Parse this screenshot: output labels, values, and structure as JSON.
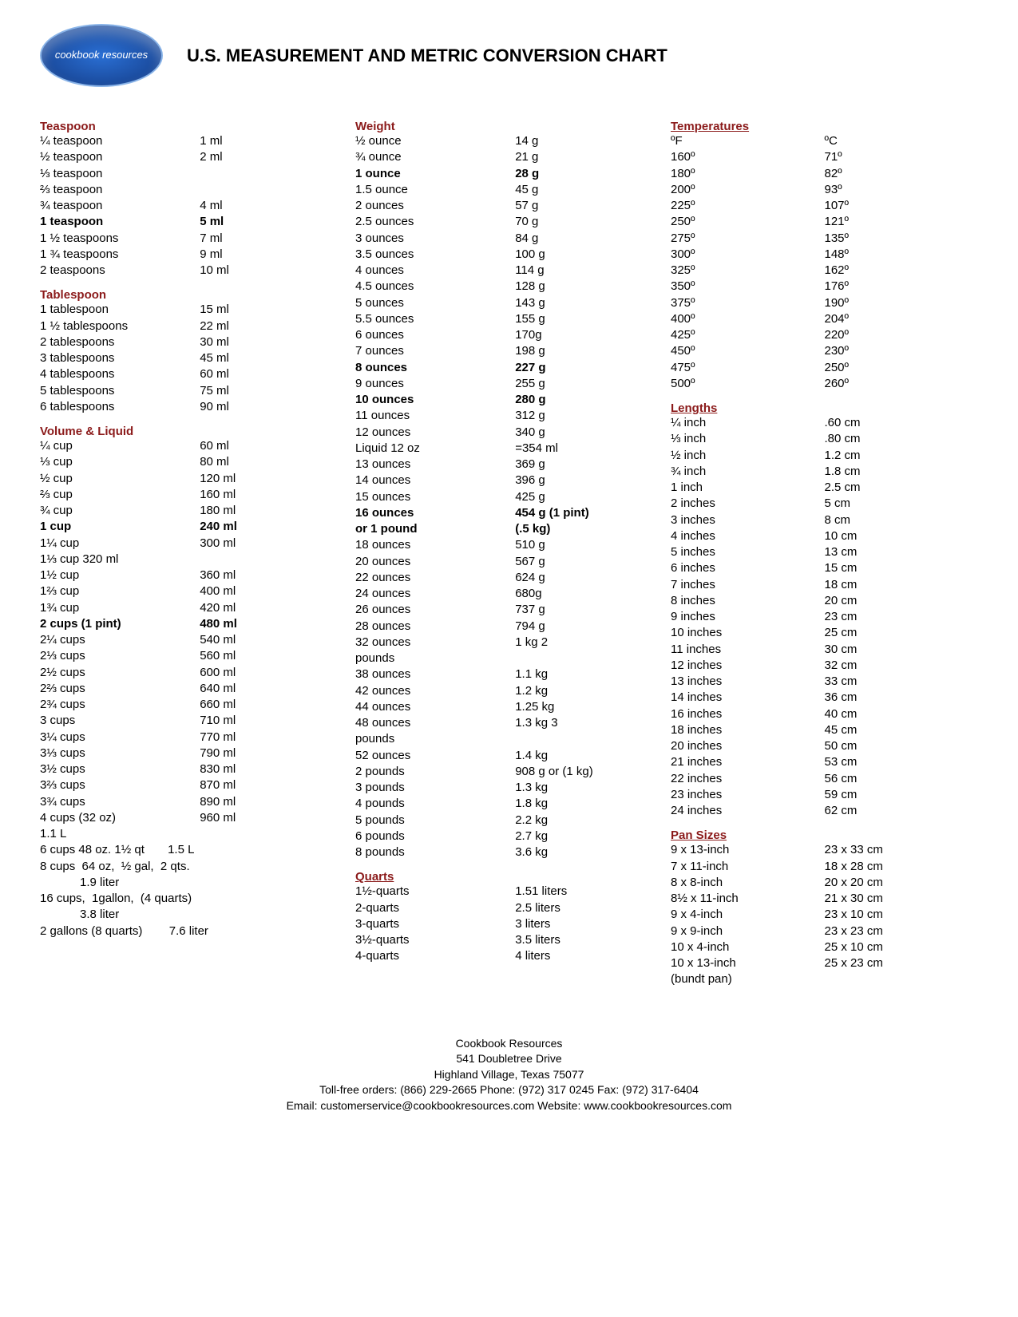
{
  "title": "U.S. MEASUREMENT AND METRIC CONVERSION CHART",
  "logo_text": "cookbook resources",
  "colors": {
    "heading": "#8b1a1a",
    "text": "#000000",
    "bg": "#ffffff"
  },
  "teaspoon": {
    "head": "Teaspoon",
    "rows": [
      {
        "a": "¼ teaspoon",
        "b": "1 ml"
      },
      {
        "a": "½ teaspoon",
        "b": "2 ml"
      },
      {
        "a": "⅓ teaspoon",
        "b": ""
      },
      {
        "a": "⅔ teaspoon",
        "b": ""
      },
      {
        "a": "¾ teaspoon",
        "b": "4 ml"
      },
      {
        "a": "1 teaspoon",
        "b": "5 ml",
        "bold": true
      },
      {
        "a": "1 ½ teaspoons",
        "b": "7 ml"
      },
      {
        "a": "1 ¾ teaspoons",
        "b": "9 ml"
      },
      {
        "a": "2 teaspoons",
        "b": "10 ml"
      }
    ]
  },
  "tablespoon": {
    "head": "Tablespoon",
    "rows": [
      {
        "a": "1 tablespoon",
        "b": "15 ml"
      },
      {
        "a": "1 ½ tablespoons",
        "b": "22 ml"
      },
      {
        "a": "2 tablespoons",
        "b": "30 ml"
      },
      {
        "a": "3 tablespoons",
        "b": "45 ml"
      },
      {
        "a": "4 tablespoons",
        "b": "60 ml"
      },
      {
        "a": "5 tablespoons",
        "b": "75 ml"
      },
      {
        "a": "6 tablespoons",
        "b": "90 ml"
      }
    ]
  },
  "volume": {
    "head": "Volume & Liquid",
    "rows": [
      {
        "a": "¼ cup",
        "b": "60 ml"
      },
      {
        "a": "⅓ cup",
        "b": "80 ml"
      },
      {
        "a": "½ cup",
        "b": "120 ml"
      },
      {
        "a": "⅔ cup",
        "b": "160 ml"
      },
      {
        "a": "¾ cup",
        "b": "180 ml"
      },
      {
        "a": "1 cup",
        "b": "240 ml",
        "bold": true
      },
      {
        "a": "1¼ cup",
        "b": "300 ml"
      },
      {
        "a": "1⅓  cup           320 ml",
        "b": ""
      },
      {
        "a": "1½ cup",
        "b": "360 ml"
      },
      {
        "a": "1⅔ cup",
        "b": "400 ml"
      },
      {
        "a": "1¾ cup",
        "b": "420 ml"
      },
      {
        "a": "2 cups  (1 pint)",
        "b": "480 ml",
        "bold": true
      },
      {
        "a": "2¼ cups",
        "b": "540 ml"
      },
      {
        "a": "2⅓ cups",
        "b": "560 ml"
      },
      {
        "a": "2½ cups",
        "b": "600 ml"
      },
      {
        "a": "2⅔ cups",
        "b": "640 ml"
      },
      {
        "a": "2¾ cups",
        "b": "660 ml"
      },
      {
        "a": "3 cups",
        "b": "710 ml"
      },
      {
        "a": "3¼ cups",
        "b": "770 ml"
      },
      {
        "a": "3⅓ cups",
        "b": "790 ml"
      },
      {
        "a": "3½ cups",
        "b": "830 ml"
      },
      {
        "a": "3⅔ cups",
        "b": "870 ml"
      },
      {
        "a": "3¾ cups",
        "b": "890 ml"
      },
      {
        "a": "4 cups (32 oz)",
        "b": "960 ml"
      }
    ],
    "free": [
      "1.1 L",
      "6 cups 48 oz. 1½ qt       1.5 L",
      "8 cups  64 oz,  ½ gal,  2 qts.",
      "            1.9 liter",
      "16 cups,  1gallon,  (4 quarts)",
      "            3.8 liter",
      "2 gallons (8 quarts)        7.6 liter"
    ]
  },
  "weight": {
    "head": "Weight",
    "rows": [
      {
        "a": "½ ounce",
        "b": "14 g"
      },
      {
        "a": "¾ ounce",
        "b": "21 g"
      },
      {
        "a": "1 ounce",
        "b": "28 g",
        "bold": true
      },
      {
        "a": "1.5 ounce",
        "b": "45 g"
      },
      {
        "a": "2 ounces",
        "b": "57 g"
      },
      {
        "a": "2.5 ounces",
        "b": "70 g"
      },
      {
        "a": "3 ounces",
        "b": "84 g"
      },
      {
        "a": "3.5 ounces",
        "b": "100 g"
      },
      {
        "a": "4 ounces",
        "b": "114 g"
      },
      {
        "a": "4.5 ounces",
        "b": "128 g"
      },
      {
        "a": "5 ounces",
        "b": "143 g"
      },
      {
        "a": "5.5 ounces",
        "b": "155 g"
      },
      {
        "a": "6 ounces",
        "b": "170g"
      },
      {
        "a": "7 ounces",
        "b": "198 g"
      },
      {
        "a": "8 ounces",
        "b": "227 g",
        "bold": true
      },
      {
        "a": "9 ounces",
        "b": "255 g"
      },
      {
        "a": "10 ounces",
        "b": "280 g",
        "bold": true
      },
      {
        "a": "11 ounces",
        "b": "312 g"
      },
      {
        "a": "12 ounces",
        "b": "340 g"
      },
      {
        "a": "Liquid 12 oz",
        "b": "=354 ml"
      },
      {
        "a": "13 ounces",
        "b": "369 g"
      },
      {
        "a": "14 ounces",
        "b": "396 g"
      },
      {
        "a": "15 ounces",
        "b": "425 g"
      },
      {
        "a": "16 ounces",
        "b": "454 g  (1 pint)",
        "bold": true
      },
      {
        "a": " or 1 pound",
        "b": "(.5 kg)",
        "bold": true
      },
      {
        "a": "18 ounces",
        "b": "510 g"
      },
      {
        "a": "20 ounces",
        "b": "567 g"
      },
      {
        "a": "22 ounces",
        "b": "624 g"
      },
      {
        "a": "24 ounces",
        "b": "680g"
      },
      {
        "a": "26 ounces",
        "b": "737 g"
      },
      {
        "a": "28 ounces",
        "b": "794 g"
      },
      {
        "a": "32 ounces",
        "b": "1 kg        2"
      },
      {
        "a": "pounds",
        "b": ""
      },
      {
        "a": "38 ounces",
        "b": "1.1 kg"
      },
      {
        "a": "42 ounces",
        "b": "1.2 kg"
      },
      {
        "a": "44 ounces",
        "b": "1.25 kg"
      },
      {
        "a": "48 ounces",
        "b": "1.3 kg     3"
      },
      {
        "a": "pounds",
        "b": ""
      },
      {
        "a": "52 ounces",
        "b": "1.4 kg"
      },
      {
        "a": "2 pounds",
        "b": "908 g or (1 kg)"
      },
      {
        "a": "3 pounds",
        "b": "1.3 kg"
      },
      {
        "a": "4 pounds",
        "b": "1.8 kg"
      },
      {
        "a": "5 pounds",
        "b": "2.2 kg"
      },
      {
        "a": "6 pounds",
        "b": "2.7 kg"
      },
      {
        "a": "8 pounds",
        "b": "3.6 kg"
      }
    ]
  },
  "quarts": {
    "head": "Quarts",
    "rows": [
      {
        "a": "1½-quarts",
        "b": "1.51 liters"
      },
      {
        "a": "2-quarts",
        "b": "  2.5 liters"
      },
      {
        "a": "3-quarts",
        "b": "     3 liters"
      },
      {
        "a": "3½-quarts",
        "b": "3.5 liters"
      },
      {
        "a": "4-quarts",
        "b": "  4 liters"
      }
    ]
  },
  "temps": {
    "head": "Temperatures",
    "header": {
      "a": "ºF",
      "b": "   ºC"
    },
    "rows": [
      {
        "a": "160º",
        "b": "71º"
      },
      {
        "a": "180º",
        "b": "82º"
      },
      {
        "a": "200º",
        "b": "93º"
      },
      {
        "a": "225º",
        "b": "107º"
      },
      {
        "a": "250º",
        "b": "121º"
      },
      {
        "a": "275º",
        "b": "135º"
      },
      {
        "a": "300º",
        "b": "148º"
      },
      {
        "a": "325º",
        "b": "162º"
      },
      {
        "a": "350º",
        "b": "176º"
      },
      {
        "a": "375º",
        "b": "190º"
      },
      {
        "a": "400º",
        "b": "204º"
      },
      {
        "a": "425º",
        "b": "220º"
      },
      {
        "a": "450º",
        "b": "230º"
      },
      {
        "a": "475º",
        "b": "250º"
      },
      {
        "a": "500º",
        "b": "260º"
      }
    ]
  },
  "lengths": {
    "head": "Lengths",
    "rows": [
      {
        "a": "¼ inch",
        "b": ".60 cm"
      },
      {
        "a": "⅓ inch",
        "b": ".80 cm"
      },
      {
        "a": "½ inch",
        "b": "1.2 cm"
      },
      {
        "a": "¾ inch",
        "b": "1.8 cm"
      },
      {
        "a": "1 inch",
        "b": "2.5 cm"
      },
      {
        "a": "2 inches",
        "b": "5    cm"
      },
      {
        "a": "3 inches",
        "b": "8    cm"
      },
      {
        "a": "4 inches",
        "b": "10 cm"
      },
      {
        "a": "5 inches",
        "b": "13 cm"
      },
      {
        "a": "6 inches",
        "b": "15 cm"
      },
      {
        "a": "7 inches",
        "b": "18 cm"
      },
      {
        "a": "8 inches",
        "b": "20 cm"
      },
      {
        "a": "9 inches",
        "b": "23 cm"
      },
      {
        "a": "10 inches",
        "b": "25 cm"
      },
      {
        "a": "11 inches",
        "b": "30 cm"
      },
      {
        "a": "12 inches",
        "b": "32 cm"
      },
      {
        "a": "13 inches",
        "b": "33 cm"
      },
      {
        "a": "14 inches",
        "b": "36 cm"
      },
      {
        "a": "16 inches",
        "b": "40 cm"
      },
      {
        "a": "18 inches",
        "b": "45 cm"
      },
      {
        "a": "20 inches",
        "b": "50 cm"
      },
      {
        "a": "21 inches",
        "b": "53 cm"
      },
      {
        "a": "22 inches",
        "b": "56 cm"
      },
      {
        "a": "23 inches",
        "b": "59 cm"
      },
      {
        "a": "24 inches",
        "b": "62 cm"
      }
    ]
  },
  "pans": {
    "head": "Pan Sizes",
    "rows": [
      {
        "a": "9 x 13-inch",
        "b": "23 x 33 cm"
      },
      {
        "a": "7 x 11-inch",
        "b": "18 x 28 cm"
      },
      {
        "a": "8 x 8-inch",
        "b": "20 x 20 cm"
      },
      {
        "a": "8½ x 11-inch",
        "b": "21 x 30 cm"
      },
      {
        "a": "9 x 4-inch",
        "b": "23 x 10 cm"
      },
      {
        "a": "9 x 9-inch",
        "b": "23 x 23 cm"
      },
      {
        "a": "10 x 4-inch",
        "b": "25 x 10 cm"
      },
      {
        "a": "10 x 13-inch",
        "b": "25 x 23 cm"
      },
      {
        "a": "(bundt pan)",
        "b": ""
      }
    ]
  },
  "footer": {
    "l1": "Cookbook Resources",
    "l2": "541 Doubletree Drive",
    "l3": "Highland Village, Texas 75077",
    "l4": "Toll-free orders: (866) 229-2665        Phone: (972) 317 0245      Fax: (972) 317-6404",
    "l5": "Email: customerservice@cookbookresources.com            Website: www.cookbookresources.com"
  }
}
